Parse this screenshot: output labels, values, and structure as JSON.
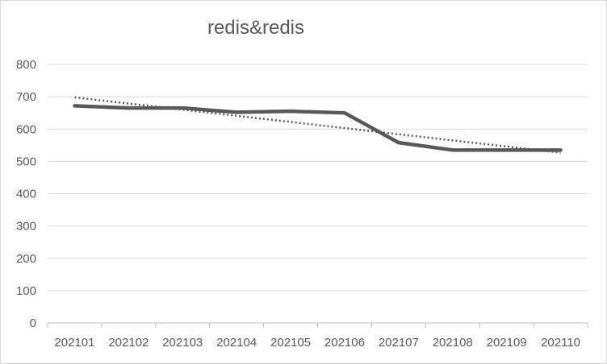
{
  "chart_data": {
    "type": "line",
    "title": "redis&redis",
    "xlabel": "",
    "ylabel": "",
    "categories": [
      "202101",
      "202102",
      "202103",
      "202104",
      "202105",
      "202106",
      "202107",
      "202108",
      "202109",
      "202110"
    ],
    "series": [
      {
        "values": [
          672,
          665,
          665,
          652,
          655,
          650,
          558,
          535,
          535,
          535
        ],
        "color": "#595959"
      }
    ],
    "trendline": {
      "type": "linear",
      "style": "dotted",
      "color": "#595959",
      "start": 698,
      "end": 527
    },
    "ylim": [
      0,
      800
    ],
    "yticks": [
      0,
      100,
      200,
      300,
      400,
      500,
      600,
      700,
      800
    ],
    "grid": true,
    "legend": "none"
  }
}
